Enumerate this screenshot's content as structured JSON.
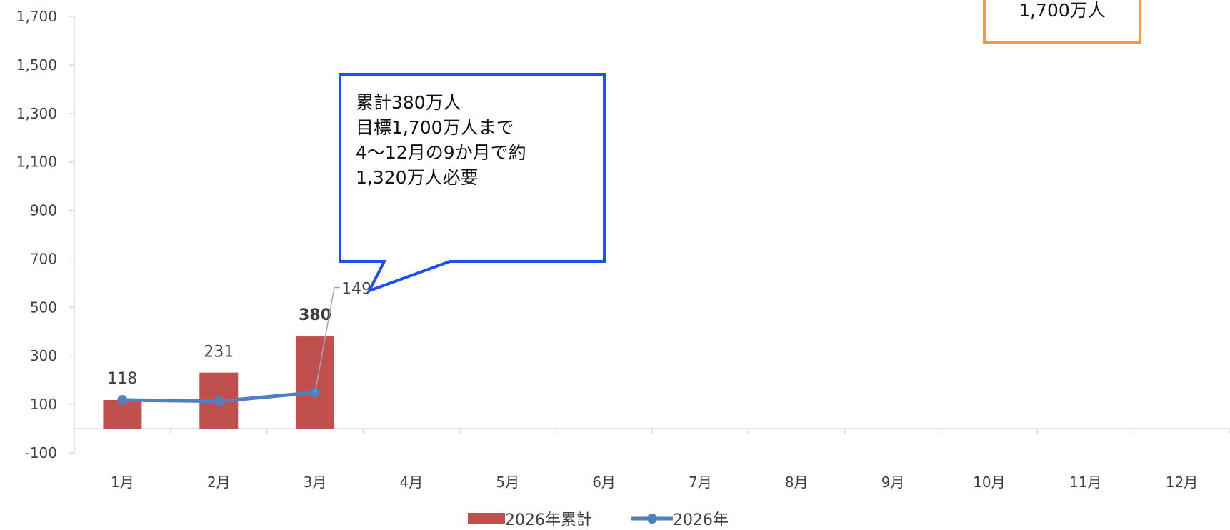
{
  "chart_data": {
    "type": "bar",
    "categories": [
      "1月",
      "2月",
      "3月",
      "4月",
      "5月",
      "6月",
      "7月",
      "8月",
      "9月",
      "10月",
      "11月",
      "12月"
    ],
    "series": [
      {
        "name": "2026年累計",
        "type": "bar",
        "color": "#c0504d",
        "values": [
          118,
          231,
          380,
          null,
          null,
          null,
          null,
          null,
          null,
          null,
          null,
          null
        ]
      },
      {
        "name": "2026年",
        "type": "line",
        "color": "#4f81bd",
        "values": [
          118,
          113,
          149,
          null,
          null,
          null,
          null,
          null,
          null,
          null,
          null,
          null
        ]
      }
    ],
    "data_labels": [
      "118",
      "231",
      "380",
      "149"
    ],
    "yticks": [
      "1,700",
      "1,500",
      "1,300",
      "1,100",
      "900",
      "700",
      "500",
      "300",
      "100",
      "-100"
    ],
    "ylim": [
      -100,
      1700
    ],
    "grid": false,
    "legend_position": "bottom"
  },
  "annotations": {
    "callout_lines": [
      "累計380万人",
      "目標1,700万人まで",
      "4〜12月の9か月で約",
      "1,320万人必要"
    ],
    "callout_border_color": "#1f4ff0",
    "target_text": "1,700万人",
    "target_border_color": "#f79646"
  },
  "legend": {
    "bar_label": "2026年累計",
    "line_label": "2026年"
  }
}
